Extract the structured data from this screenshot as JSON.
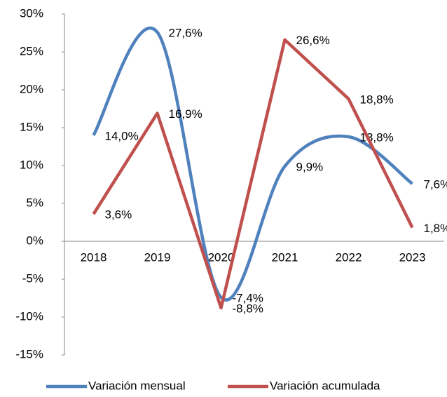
{
  "chart_data": {
    "type": "line",
    "categories": [
      "2018",
      "2019",
      "2020",
      "2021",
      "2022",
      "2023"
    ],
    "series": [
      {
        "name": "Variación mensual",
        "color": "#4f81bd",
        "smooth": true,
        "values": [
          14.0,
          27.6,
          -7.4,
          9.9,
          13.8,
          7.6
        ],
        "value_labels": [
          "14,0%",
          "27,6%",
          "-7,4%",
          "9,9%",
          "13,8%",
          "7,6%"
        ]
      },
      {
        "name": "Variación acumulada",
        "color": "#c0504d",
        "smooth": false,
        "values": [
          3.6,
          16.9,
          -8.8,
          26.6,
          18.8,
          1.8
        ],
        "value_labels": [
          "3,6%",
          "16,9%",
          "-8,8%",
          "26,6%",
          "18,8%",
          "1,8%"
        ]
      }
    ],
    "ylim": [
      -15,
      30
    ],
    "yticks": [
      {
        "value": -15,
        "label": "-15%"
      },
      {
        "value": -10,
        "label": "-10%"
      },
      {
        "value": -5,
        "label": "-5%"
      },
      {
        "value": 0,
        "label": "0%"
      },
      {
        "value": 5,
        "label": "5%"
      },
      {
        "value": 10,
        "label": "10%"
      },
      {
        "value": 15,
        "label": "15%"
      },
      {
        "value": 20,
        "label": "20%"
      },
      {
        "value": 25,
        "label": "25%"
      },
      {
        "value": 30,
        "label": "30%"
      }
    ],
    "legend": "bottom"
  }
}
